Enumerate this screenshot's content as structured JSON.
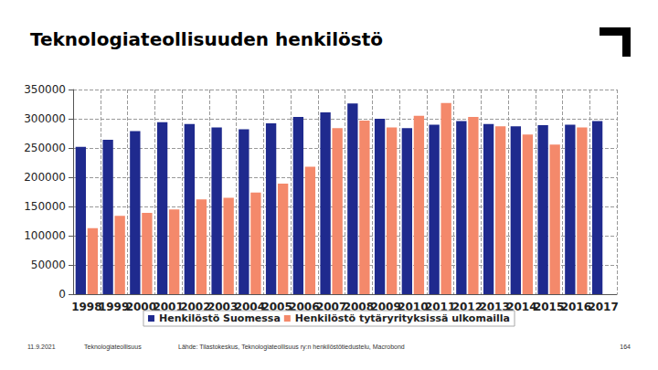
{
  "chart_data": {
    "type": "bar",
    "title": "Teknologiateollisuuden henkilöstö",
    "categories": [
      "1998",
      "1999",
      "2000",
      "2001",
      "2002",
      "2003",
      "2004",
      "2005",
      "2006",
      "2007",
      "2008",
      "2009",
      "2010",
      "2011",
      "2012",
      "2013",
      "2014",
      "2015",
      "2016",
      "2017"
    ],
    "series": [
      {
        "name": "Henkilöstö Suomessa",
        "color": "#1f2a8e",
        "values": [
          252000,
          264000,
          279000,
          294000,
          291000,
          285000,
          282000,
          292000,
          303000,
          311000,
          326000,
          300000,
          284000,
          290000,
          296000,
          291000,
          287000,
          289000,
          290000,
          296000
        ]
      },
      {
        "name": "Henkilöstö tytäryrityksissä ulkomailla",
        "color": "#f4896b",
        "values": [
          113000,
          134000,
          139000,
          145000,
          162000,
          165000,
          174000,
          189000,
          218000,
          284000,
          297000,
          285000,
          305000,
          327000,
          303000,
          287000,
          273000,
          256000,
          285000,
          null
        ]
      }
    ],
    "ylim": [
      0,
      350000
    ],
    "yticks": [
      0,
      50000,
      100000,
      150000,
      200000,
      250000,
      300000,
      350000
    ],
    "grid": true,
    "legend": "bottom"
  },
  "footer": {
    "date": "11.9.2021",
    "org": "Teknologiateollisuus",
    "source": "Lähde: Tilastokeskus, Teknologiateollisuus ry:n henkilöstötiedustelu, Macrobond",
    "page": "164"
  }
}
